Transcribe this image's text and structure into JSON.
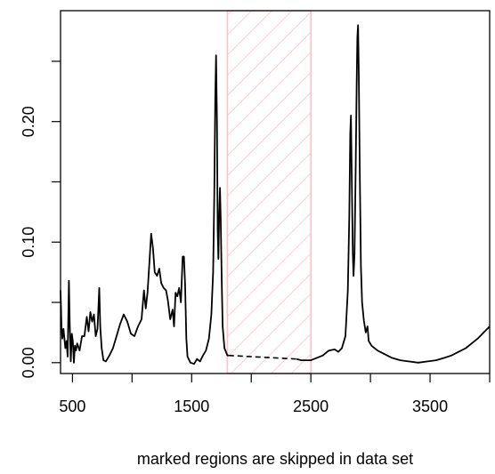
{
  "chart_data": {
    "type": "line",
    "title": "",
    "xlabel": "marked regions are skipped in data set",
    "ylabel": "",
    "xlim": [
      400,
      4000
    ],
    "ylim": [
      -0.009,
      0.292
    ],
    "x_ticks": [
      500,
      1500,
      2500,
      3500
    ],
    "x_tick_labels": [
      "500",
      "1500",
      "2500",
      "3500"
    ],
    "x_minor_ticks": [
      1000,
      2000,
      3000,
      4000
    ],
    "y_ticks": [
      0.0,
      0.1,
      0.2
    ],
    "y_tick_labels": [
      "0.00",
      "0.10",
      "0.20"
    ],
    "y_minor_ticks": [
      0.05,
      0.15,
      0.25
    ],
    "grid": false,
    "colors": {
      "line": "#000000",
      "skipped_region": "#ffc0cb"
    },
    "skipped_regions": [
      {
        "from": 1800,
        "to": 2500
      }
    ],
    "series": [
      {
        "values": [
          [
            400,
            0.06
          ],
          [
            408,
            0.03
          ],
          [
            415,
            0.02
          ],
          [
            425,
            0.028
          ],
          [
            440,
            0.012
          ],
          [
            450,
            0.018
          ],
          [
            460,
            0.005
          ],
          [
            470,
            0.068
          ],
          [
            478,
            0.03
          ],
          [
            486,
            0.001
          ],
          [
            495,
            0.024
          ],
          [
            503,
            0.018
          ],
          [
            512,
            0.0
          ],
          [
            520,
            0.014
          ],
          [
            530,
            0.01
          ],
          [
            540,
            0.016
          ],
          [
            560,
            0.01
          ],
          [
            580,
            0.022
          ],
          [
            600,
            0.022
          ],
          [
            620,
            0.038
          ],
          [
            635,
            0.026
          ],
          [
            650,
            0.042
          ],
          [
            665,
            0.034
          ],
          [
            680,
            0.04
          ],
          [
            695,
            0.022
          ],
          [
            710,
            0.028
          ],
          [
            725,
            0.062
          ],
          [
            733,
            0.03
          ],
          [
            745,
            0.012
          ],
          [
            760,
            0.002
          ],
          [
            780,
            0.001
          ],
          [
            810,
            0.006
          ],
          [
            840,
            0.012
          ],
          [
            870,
            0.022
          ],
          [
            900,
            0.032
          ],
          [
            930,
            0.04
          ],
          [
            960,
            0.034
          ],
          [
            990,
            0.024
          ],
          [
            1020,
            0.022
          ],
          [
            1050,
            0.03
          ],
          [
            1080,
            0.036
          ],
          [
            1100,
            0.06
          ],
          [
            1115,
            0.045
          ],
          [
            1130,
            0.058
          ],
          [
            1150,
            0.09
          ],
          [
            1160,
            0.107
          ],
          [
            1175,
            0.095
          ],
          [
            1190,
            0.075
          ],
          [
            1210,
            0.072
          ],
          [
            1228,
            0.078
          ],
          [
            1245,
            0.066
          ],
          [
            1265,
            0.062
          ],
          [
            1285,
            0.06
          ],
          [
            1300,
            0.052
          ],
          [
            1320,
            0.036
          ],
          [
            1340,
            0.044
          ],
          [
            1352,
            0.03
          ],
          [
            1365,
            0.058
          ],
          [
            1380,
            0.055
          ],
          [
            1395,
            0.062
          ],
          [
            1410,
            0.05
          ],
          [
            1425,
            0.088
          ],
          [
            1435,
            0.088
          ],
          [
            1445,
            0.065
          ],
          [
            1455,
            0.02
          ],
          [
            1465,
            0.005
          ],
          [
            1490,
            0.0
          ],
          [
            1520,
            -0.001
          ],
          [
            1545,
            0.003
          ],
          [
            1570,
            0.001
          ],
          [
            1595,
            0.006
          ],
          [
            1620,
            0.01
          ],
          [
            1645,
            0.02
          ],
          [
            1665,
            0.04
          ],
          [
            1680,
            0.075
          ],
          [
            1690,
            0.14
          ],
          [
            1698,
            0.22
          ],
          [
            1705,
            0.255
          ],
          [
            1712,
            0.2
          ],
          [
            1718,
            0.11
          ],
          [
            1724,
            0.086
          ],
          [
            1730,
            0.12
          ],
          [
            1738,
            0.145
          ],
          [
            1744,
            0.12
          ],
          [
            1752,
            0.07
          ],
          [
            1760,
            0.03
          ],
          [
            1775,
            0.012
          ],
          [
            1800,
            0.006
          ],
          [
            1810,
            0.006
          ],
          [
            2380,
            0.003
          ],
          [
            2420,
            0.002
          ],
          [
            2480,
            0.002
          ],
          [
            2500,
            0.002
          ],
          [
            2550,
            0.004
          ],
          [
            2600,
            0.006
          ],
          [
            2650,
            0.01
          ],
          [
            2700,
            0.011
          ],
          [
            2730,
            0.009
          ],
          [
            2760,
            0.012
          ],
          [
            2790,
            0.022
          ],
          [
            2810,
            0.06
          ],
          [
            2822,
            0.12
          ],
          [
            2830,
            0.19
          ],
          [
            2836,
            0.205
          ],
          [
            2842,
            0.16
          ],
          [
            2852,
            0.09
          ],
          [
            2858,
            0.072
          ],
          [
            2866,
            0.09
          ],
          [
            2876,
            0.16
          ],
          [
            2884,
            0.23
          ],
          [
            2890,
            0.27
          ],
          [
            2896,
            0.28
          ],
          [
            2902,
            0.24
          ],
          [
            2910,
            0.16
          ],
          [
            2920,
            0.08
          ],
          [
            2930,
            0.05
          ],
          [
            2945,
            0.035
          ],
          [
            2960,
            0.025
          ],
          [
            2975,
            0.03
          ],
          [
            2985,
            0.018
          ],
          [
            3010,
            0.014
          ],
          [
            3060,
            0.01
          ],
          [
            3120,
            0.007
          ],
          [
            3180,
            0.004
          ],
          [
            3250,
            0.002
          ],
          [
            3320,
            0.001
          ],
          [
            3400,
            0.0
          ],
          [
            3480,
            0.001
          ],
          [
            3550,
            0.002
          ],
          [
            3620,
            0.004
          ],
          [
            3680,
            0.006
          ],
          [
            3740,
            0.009
          ],
          [
            3800,
            0.012
          ],
          [
            3850,
            0.016
          ],
          [
            3900,
            0.02
          ],
          [
            3950,
            0.025
          ],
          [
            4000,
            0.03
          ]
        ]
      }
    ]
  }
}
